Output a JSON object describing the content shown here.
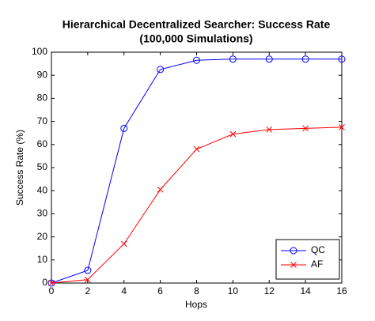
{
  "chart_data": {
    "type": "line",
    "title": "Hierarchical Decentralized Searcher: Success Rate",
    "subtitle": "(100,000 Simulations)",
    "x_label": "Hops",
    "y_label": "Success Rate (%)",
    "x": [
      0,
      2,
      4,
      6,
      8,
      10,
      12,
      14,
      16
    ],
    "series": [
      {
        "name": "QC",
        "color": "#0000ff",
        "marker": "o",
        "values": [
          0,
          5.5,
          67,
          92.5,
          96.5,
          97,
          97,
          97,
          97
        ]
      },
      {
        "name": "AF",
        "color": "#ff0000",
        "marker": "x",
        "values": [
          0,
          1.5,
          17,
          40.5,
          58,
          64.5,
          66.5,
          67,
          67.5
        ]
      }
    ],
    "xlim": [
      0,
      16
    ],
    "xticks": [
      0,
      2,
      4,
      6,
      8,
      10,
      12,
      14,
      16
    ],
    "ylim": [
      0,
      100
    ],
    "yticks": [
      0,
      10,
      20,
      30,
      40,
      50,
      60,
      70,
      80,
      90,
      100
    ],
    "grid": false,
    "legend": "lower right"
  }
}
